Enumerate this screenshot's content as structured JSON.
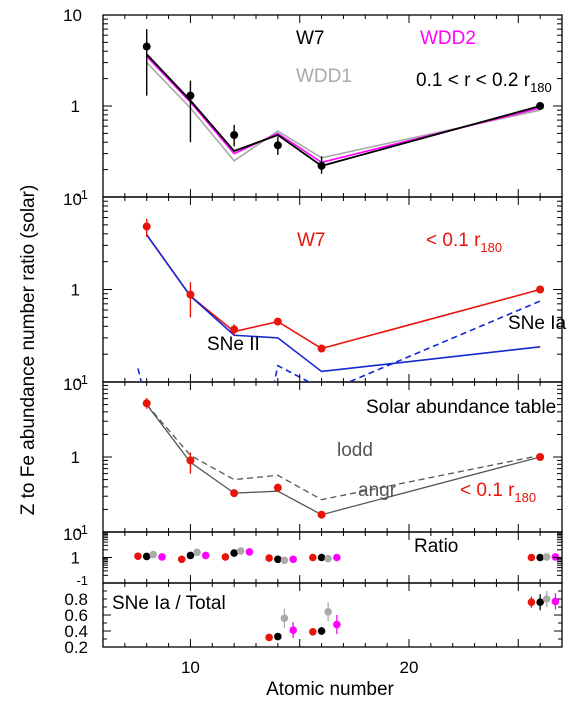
{
  "figure": {
    "ylabel": "Z to Fe abundance number ratio (solar)",
    "xlabel": "Atomic number",
    "x_ticks": [
      "10",
      "20"
    ],
    "log_ticks": {
      "t10": "10",
      "t1": "1",
      "tm1": "-1"
    },
    "lin_ticks": [
      "0.2",
      "0.4",
      "0.6",
      "0.8"
    ]
  },
  "chart_data": [
    {
      "type": "line",
      "panel": "top",
      "annotations": {
        "w7": "W7",
        "wdd2": "WDD2",
        "wdd1": "WDD1",
        "region_a": "0.1 < r < 0.2 r",
        "region_b": "180"
      },
      "xlim": [
        6,
        27
      ],
      "ylim": [
        0.1,
        10
      ],
      "yscale": "log",
      "colors": {
        "w7": "#000000",
        "wdd2": "#ff00ff",
        "wdd1": "#aaaaaa",
        "data": "#000000"
      },
      "data": {
        "x": [
          8,
          10,
          12,
          14,
          16,
          26
        ],
        "y": [
          4.5,
          1.3,
          0.48,
          0.37,
          0.22,
          1.0
        ],
        "err_lo": [
          1.3,
          0.4,
          0.36,
          0.29,
          0.18,
          0.95
        ],
        "err_hi": [
          7.0,
          1.9,
          0.62,
          0.46,
          0.28,
          1.05
        ]
      },
      "series": [
        {
          "key": "w7",
          "x": [
            8,
            10,
            12,
            14,
            16,
            26
          ],
          "y": [
            3.7,
            1.15,
            0.32,
            0.48,
            0.22,
            1.0
          ]
        },
        {
          "key": "wdd2",
          "x": [
            8,
            10,
            12,
            14,
            16,
            26
          ],
          "y": [
            3.5,
            1.1,
            0.3,
            0.5,
            0.24,
            0.95
          ]
        },
        {
          "key": "wdd1",
          "x": [
            8,
            10,
            12,
            14,
            16,
            26
          ],
          "y": [
            3.0,
            0.95,
            0.25,
            0.53,
            0.27,
            0.9
          ]
        }
      ]
    },
    {
      "type": "line",
      "panel": "second",
      "annotations": {
        "w7": "W7",
        "region_a": "< 0.1 r",
        "region_b": "180",
        "sne2": "SNe II",
        "sne1a": "SNe Ia"
      },
      "xlim": [
        6,
        27
      ],
      "ylim": [
        0.1,
        10
      ],
      "yscale": "log",
      "colors": {
        "data": "#e8140c",
        "model": "#1428d2"
      },
      "data": {
        "x": [
          8,
          10,
          12,
          14,
          16,
          26
        ],
        "y": [
          4.8,
          0.88,
          0.37,
          0.45,
          0.23,
          1.0
        ],
        "err_lo": [
          3.7,
          0.5,
          0.32,
          0.42,
          0.21,
          0.96
        ],
        "err_hi": [
          5.8,
          1.2,
          0.42,
          0.48,
          0.25,
          1.04
        ]
      },
      "series": [
        {
          "key": "total",
          "style": "solid",
          "color": "#e8140c",
          "x": [
            8,
            10,
            12,
            14,
            16,
            26
          ],
          "y": [
            3.9,
            0.85,
            0.35,
            0.45,
            0.23,
            1.0
          ]
        },
        {
          "key": "sne2",
          "style": "solid",
          "color": "#1428d2",
          "x": [
            8,
            10,
            12,
            14,
            16,
            26
          ],
          "y": [
            3.9,
            0.85,
            0.32,
            0.3,
            0.13,
            0.24
          ]
        },
        {
          "key": "sne1a_a",
          "style": "dash",
          "color": "#1428d2",
          "x": [
            7.6,
            7.8
          ],
          "y": [
            0.14,
            0.09
          ]
        },
        {
          "key": "sne1a_b",
          "style": "dash",
          "color": "#1428d2",
          "x": [
            13.8,
            14.0,
            16.0,
            16.8,
            26.0
          ],
          "y": [
            0.09,
            0.15,
            0.085,
            0.09,
            0.75
          ]
        }
      ]
    },
    {
      "type": "line",
      "panel": "third",
      "annotations": {
        "table": "Solar abundance table",
        "lodd": "lodd",
        "angr": "angr",
        "region_a": "< 0.1 r",
        "region_b": "180"
      },
      "xlim": [
        6,
        27
      ],
      "ylim": [
        0.1,
        10
      ],
      "yscale": "log",
      "colors": {
        "data": "#e8140c",
        "angr": "#555555",
        "lodd": "#555555"
      },
      "data": {
        "x": [
          8,
          10,
          12,
          14,
          16,
          26
        ],
        "y": [
          5.2,
          0.9,
          0.33,
          0.39,
          0.17,
          1.0
        ],
        "err_lo": [
          4.4,
          0.6,
          0.3,
          0.37,
          0.16,
          0.96
        ],
        "err_hi": [
          6.1,
          1.15,
          0.36,
          0.41,
          0.18,
          1.04
        ]
      },
      "series": [
        {
          "key": "lodd",
          "style": "dash",
          "x": [
            8,
            10,
            12,
            14,
            16,
            26
          ],
          "y": [
            5.0,
            1.05,
            0.5,
            0.57,
            0.27,
            1.05
          ]
        },
        {
          "key": "angr",
          "style": "solid",
          "x": [
            8,
            10,
            12,
            14,
            16,
            26
          ],
          "y": [
            5.0,
            0.85,
            0.33,
            0.35,
            0.17,
            1.0
          ]
        }
      ]
    },
    {
      "type": "scatter",
      "panel": "fourth",
      "annotations": {
        "label": "Ratio"
      },
      "xlim": [
        6,
        27
      ],
      "ylim": [
        0.1,
        10
      ],
      "yscale": "log",
      "series": [
        {
          "key": "red",
          "color": "#e8140c",
          "x": [
            7.6,
            9.6,
            11.6,
            13.6,
            15.6,
            25.6
          ],
          "y": [
            1.12,
            0.85,
            1.05,
            0.95,
            1.0,
            1.0
          ]
        },
        {
          "key": "black",
          "color": "#000000",
          "x": [
            8.0,
            10.0,
            12.0,
            14.0,
            16.0,
            26.0
          ],
          "y": [
            1.1,
            1.2,
            1.5,
            0.85,
            1.0,
            1.0
          ]
        },
        {
          "key": "gray",
          "color": "#aaaaaa",
          "x": [
            8.3,
            10.3,
            12.3,
            14.3,
            16.3,
            26.3
          ],
          "y": [
            1.3,
            1.6,
            1.8,
            0.78,
            0.9,
            1.05
          ]
        },
        {
          "key": "magenta",
          "color": "#ff00ff",
          "x": [
            8.7,
            10.7,
            12.7,
            14.7,
            16.7,
            26.7
          ],
          "y": [
            1.05,
            1.2,
            1.65,
            0.85,
            1.0,
            1.05
          ]
        }
      ]
    },
    {
      "type": "scatter",
      "panel": "bottom",
      "annotations": {
        "label": "SNe Ia / Total"
      },
      "xlim": [
        6,
        27
      ],
      "ylim": [
        0.2,
        1.0
      ],
      "yscale": "linear",
      "series": [
        {
          "key": "red",
          "color": "#e8140c",
          "x": [
            13.6,
            15.6,
            25.6
          ],
          "y": [
            0.32,
            0.39,
            0.76
          ],
          "err": [
            0.02,
            0.04,
            0.07
          ]
        },
        {
          "key": "black",
          "color": "#000000",
          "x": [
            14.0,
            16.0,
            26.0
          ],
          "y": [
            0.33,
            0.4,
            0.76
          ],
          "err": [
            0.03,
            0.05,
            0.1
          ]
        },
        {
          "key": "gray",
          "color": "#aaaaaa",
          "x": [
            14.3,
            16.3,
            26.3
          ],
          "y": [
            0.56,
            0.64,
            0.8
          ],
          "err": [
            0.12,
            0.12,
            0.1
          ]
        },
        {
          "key": "magenta",
          "color": "#ff00ff",
          "x": [
            14.7,
            16.7,
            26.7
          ],
          "y": [
            0.41,
            0.48,
            0.77
          ],
          "err": [
            0.1,
            0.12,
            0.1
          ]
        }
      ]
    }
  ]
}
